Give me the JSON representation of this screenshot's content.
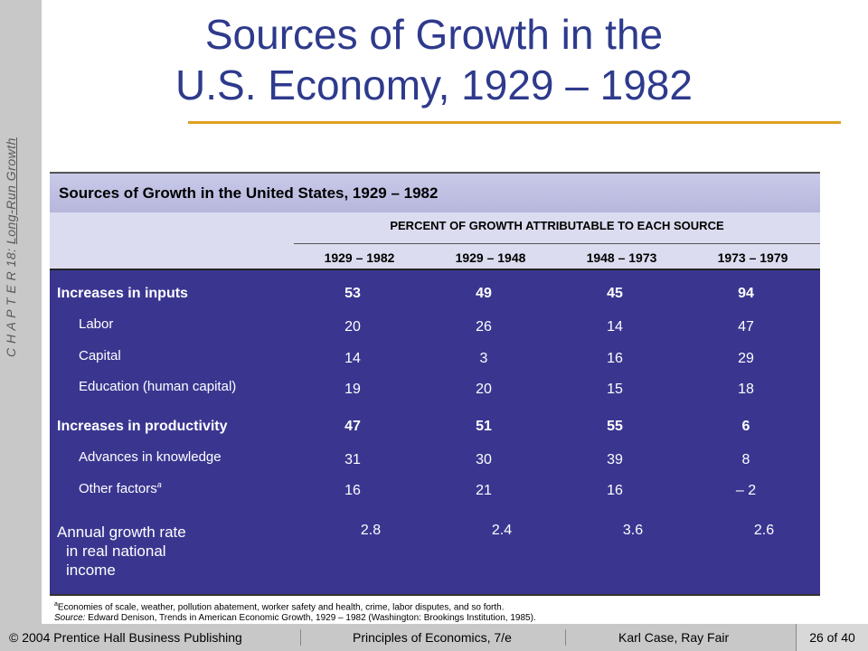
{
  "sidebar": {
    "chapter": "C H A P T E R  18:",
    "topic": "Long-Run Growth"
  },
  "title": {
    "line1": "Sources of Growth in the",
    "line2": "U.S. Economy, 1929 – 1982"
  },
  "table": {
    "caption": "Sources of Growth in the United States, 1929 – 1982",
    "span_header": "PERCENT OF GROWTH ATTRIBUTABLE TO EACH SOURCE",
    "columns": [
      "1929 – 1982",
      "1929 – 1948",
      "1948 – 1973",
      "1973 – 1979"
    ],
    "rows": [
      {
        "label": "Increases in inputs",
        "values": [
          "53",
          "49",
          "45",
          "94"
        ]
      },
      {
        "label": "Labor",
        "values": [
          "20",
          "26",
          "14",
          "47"
        ]
      },
      {
        "label": "Capital",
        "values": [
          "14",
          "3",
          "16",
          "29"
        ]
      },
      {
        "label": "Education (human capital)",
        "values": [
          "19",
          "20",
          "15",
          "18"
        ]
      },
      {
        "label": "Increases in productivity",
        "values": [
          "47",
          "51",
          "55",
          "6"
        ]
      },
      {
        "label": "Advances in knowledge",
        "values": [
          "31",
          "30",
          "39",
          "8"
        ]
      },
      {
        "label": "Other factors",
        "footnote_mark": "a",
        "values": [
          "16",
          "21",
          "16",
          "– 2"
        ]
      },
      {
        "label_lines": [
          "Annual growth rate",
          "in real national",
          "income"
        ],
        "values": [
          "2.8",
          "2.4",
          "3.6",
          "2.6"
        ]
      }
    ],
    "footnote_mark": "a",
    "footnote": "Economies of scale, weather, pollution abatement, worker safety and health, crime, labor disputes, and so forth.",
    "source_label": "Source:",
    "source_text": "Edward Denison, Trends in American Economic Growth, 1929 – 1982 (Washington: Brookings Institution, 1985)."
  },
  "footer": {
    "copyright": "© 2004 Prentice Hall Business Publishing",
    "book": "Principles of Economics, 7/e",
    "authors": "Karl Case, Ray Fair",
    "page": "26 of 40"
  }
}
